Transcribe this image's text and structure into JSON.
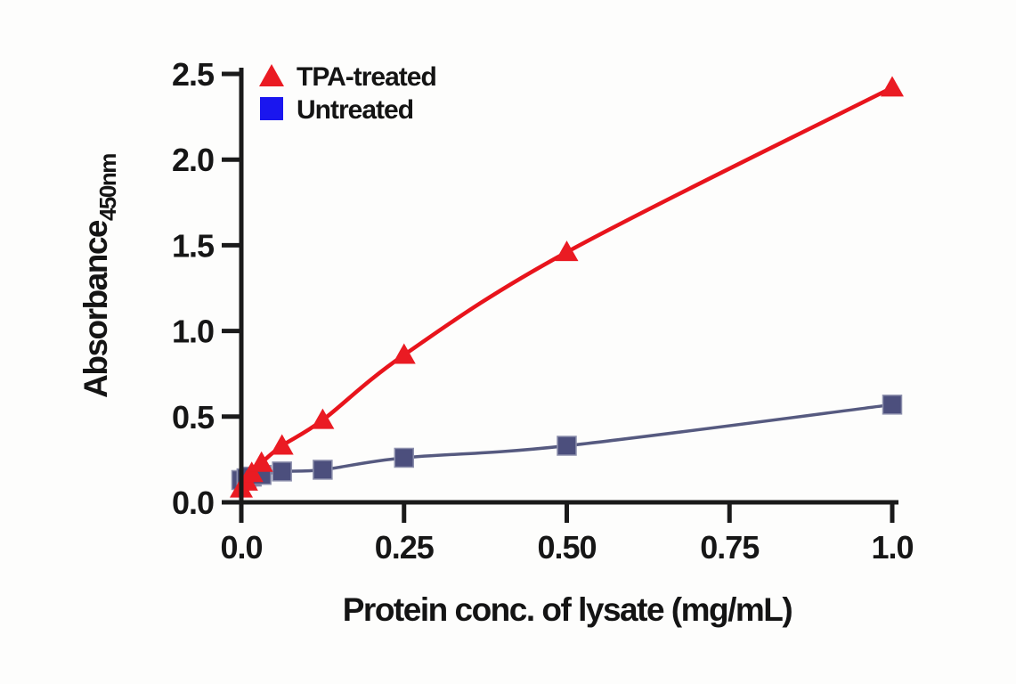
{
  "figure": {
    "background": "#fdfdfc",
    "axis_color": "#1a1a1a",
    "text_color": "#141414"
  },
  "chart_data": {
    "type": "line",
    "title": "",
    "xlabel": "Protein conc. of lysate (mg/mL)",
    "ylabel": "Absorbance",
    "ylabel_subscript": "450nm",
    "xlim": [
      0,
      1.0
    ],
    "ylim": [
      0,
      2.5
    ],
    "x_ticks": [
      0,
      0.25,
      0.5,
      0.75,
      1.0
    ],
    "x_tick_labels": [
      "0.0",
      "0.25",
      "0.50",
      "0.75",
      "1.0"
    ],
    "y_ticks": [
      0,
      0.5,
      1.0,
      1.5,
      2.0,
      2.5
    ],
    "y_tick_labels": [
      "0.0",
      "0.5",
      "1.0",
      "1.5",
      "2.0",
      "2.5"
    ],
    "grid": false,
    "legend_position": "top-left-inside",
    "series": [
      {
        "name": "Untreated",
        "marker": "square",
        "legend_color": "#1a16ef",
        "marker_fill": "#4c4f7d",
        "marker_edge": "#8d90ad",
        "line_color": "#565a80",
        "line_width": 3.5,
        "x": [
          0,
          0.008,
          0.016,
          0.031,
          0.0625,
          0.125,
          0.25,
          0.5,
          1.0
        ],
        "y": [
          0.13,
          0.14,
          0.15,
          0.16,
          0.18,
          0.19,
          0.26,
          0.33,
          0.57
        ]
      },
      {
        "name": "TPA-treated",
        "marker": "triangle",
        "legend_color": "#ea1b23",
        "marker_fill": "#ea1b23",
        "marker_edge": "#ea1b23",
        "line_color": "#e8141c",
        "line_width": 4.5,
        "x": [
          0,
          0.008,
          0.016,
          0.031,
          0.0625,
          0.125,
          0.25,
          0.5,
          1.0
        ],
        "y": [
          0.08,
          0.12,
          0.17,
          0.23,
          0.33,
          0.48,
          0.86,
          1.46,
          2.42
        ]
      }
    ],
    "legend_order": [
      "TPA-treated",
      "Untreated"
    ]
  }
}
